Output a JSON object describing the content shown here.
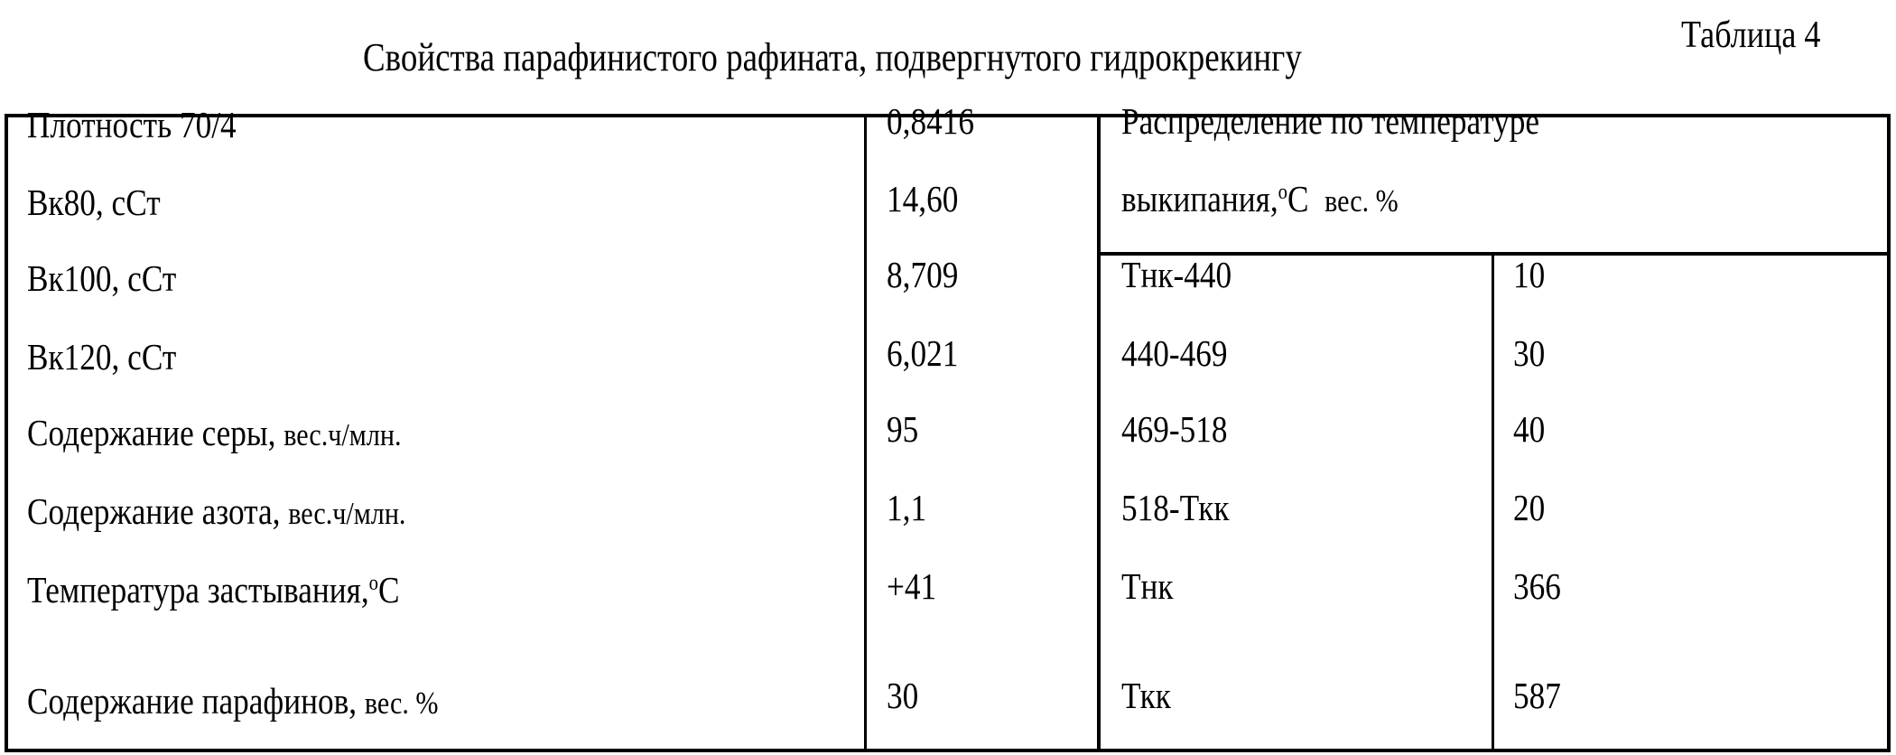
{
  "table_number": "Таблица 4",
  "title": "Свойства парафинистого рафината, подвергнутого гидрокрекингу",
  "properties": [
    {
      "label": "Плотность 70/4",
      "unit": "",
      "value": "0,8416"
    },
    {
      "label": "Вк80, сСт",
      "unit": "",
      "value": "14,60"
    },
    {
      "label": "Вк100, сСт",
      "unit": "",
      "value": "8,709"
    },
    {
      "label": "Вк120, сСт",
      "unit": "",
      "value": "6,021"
    },
    {
      "label": "Содержание серы,",
      "unit": "вес.ч/млн.",
      "value": "95"
    },
    {
      "label": "Содержание азота,",
      "unit": "вес.ч/млн.",
      "value": "1,1"
    },
    {
      "label": "Температура застывания,",
      "unit": "C",
      "value": "+41"
    },
    {
      "label": "Содержание парафинов,",
      "unit": "вес. %",
      "value": "30"
    }
  ],
  "distribution": {
    "header_line1": "Распределение по температуре",
    "header_line2": "выкипания,",
    "header_unit_c": "C",
    "header_unit_pct": "вес. %",
    "degree_symbol": "o",
    "rows": [
      {
        "range": "Тнк-440",
        "value": "10"
      },
      {
        "range": "440-469",
        "value": "30"
      },
      {
        "range": "469-518",
        "value": "40"
      },
      {
        "range": "518-Ткк",
        "value": "20"
      },
      {
        "range": "Тнк",
        "value": "366"
      },
      {
        "range": "Ткк",
        "value": "587"
      }
    ]
  }
}
